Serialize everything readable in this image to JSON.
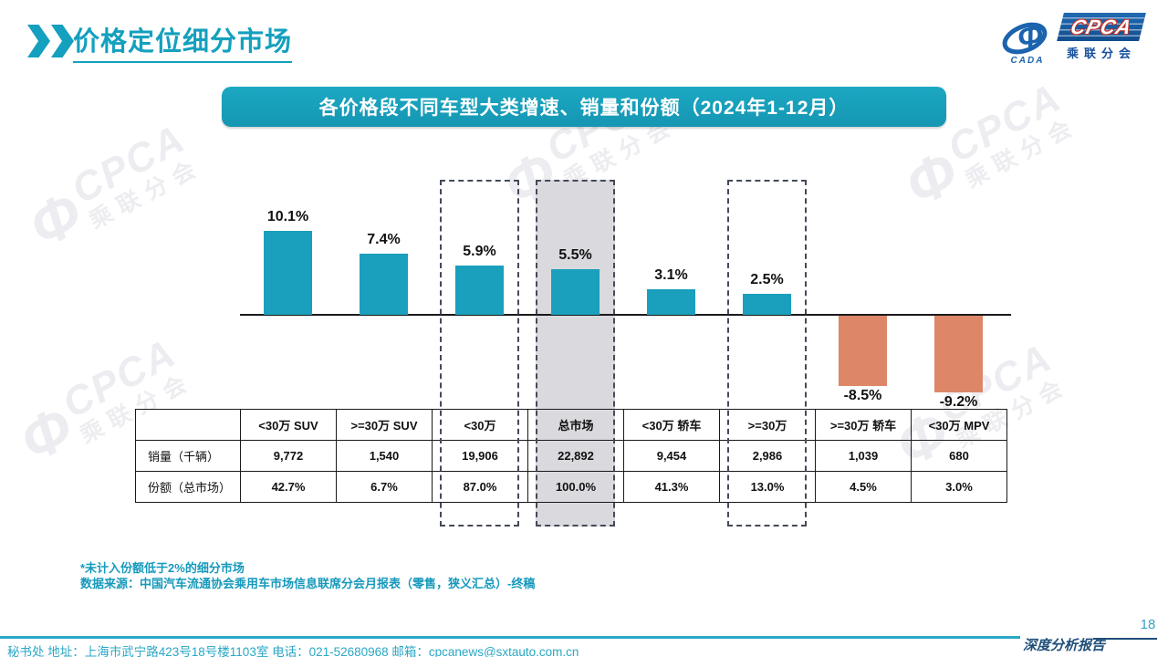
{
  "header": {
    "title": "价格定位细分市场"
  },
  "logo": {
    "cpca_text": "CPCA",
    "subtitle": "乘联分会",
    "emblem_text": "CADA"
  },
  "banner": {
    "title": "各价格段不同车型大类增速、销量和份额（2024年1-12月）"
  },
  "chart_data": {
    "type": "bar",
    "title": "各价格段不同车型大类增速、销量和份额（2024年1-12月）",
    "categories": [
      "<30万 SUV",
      ">=30万 SUV",
      "<30万",
      "总市场",
      "<30万 轿车",
      ">=30万",
      ">=30万 轿车",
      "<30万 MPV"
    ],
    "series": [
      {
        "name": "增速",
        "unit": "%",
        "values": [
          10.1,
          7.4,
          5.9,
          5.5,
          3.1,
          2.5,
          -8.5,
          -9.2
        ]
      },
      {
        "name": "销量（千辆）",
        "unit": "千辆",
        "values": [
          9772,
          1540,
          19906,
          22892,
          9454,
          2986,
          1039,
          680
        ]
      },
      {
        "name": "份额（总市场）",
        "unit": "%",
        "values": [
          42.7,
          6.7,
          87.0,
          100.0,
          41.3,
          13.0,
          4.5,
          3.0
        ]
      }
    ],
    "bar_labels": [
      "10.1%",
      "7.4%",
      "5.9%",
      "5.5%",
      "3.1%",
      "2.5%",
      "-8.5%",
      "-9.2%"
    ],
    "dashed_highlight_categories": [
      "<30万",
      "总市场",
      ">=30万"
    ],
    "dashed_indices": [
      2,
      3,
      5
    ],
    "filled_index": 3,
    "positive_color": "#1A9FBC",
    "negative_color": "#DD8768",
    "highlight_fill": "#D9D9DE",
    "xlabel": "",
    "ylabel": "",
    "gridlines": false,
    "legend": false
  },
  "table": {
    "row_labels": [
      "销量（千辆）",
      "份额（总市场）"
    ],
    "columns": [
      "<30万 SUV",
      ">=30万 SUV",
      "<30万",
      "总市场",
      "<30万 轿车",
      ">=30万",
      ">=30万 轿车",
      "<30万 MPV"
    ],
    "sales": [
      "9,772",
      "1,540",
      "19,906",
      "22,892",
      "9,454",
      "2,986",
      "1,039",
      "680"
    ],
    "share": [
      "42.7%",
      "6.7%",
      "87.0%",
      "100.0%",
      "41.3%",
      "13.0%",
      "4.5%",
      "3.0%"
    ]
  },
  "notes": {
    "line1": "*未计入份额低于2%的细分市场",
    "line2": "数据来源：中国汽车流通协会乘用车市场信息联席分会月报表（零售，狭义汇总）-终稿"
  },
  "footer": {
    "address": "秘书处  地址：上海市武宁路423号18号楼1103室 电话：021-52680968   邮箱：cpcanews@sxtauto.com.cn",
    "report_label": "深度分析报告",
    "page_number": "18"
  },
  "watermark": {
    "phi": "Φ",
    "cpca": "CPCA",
    "sub": "乘联分会"
  }
}
